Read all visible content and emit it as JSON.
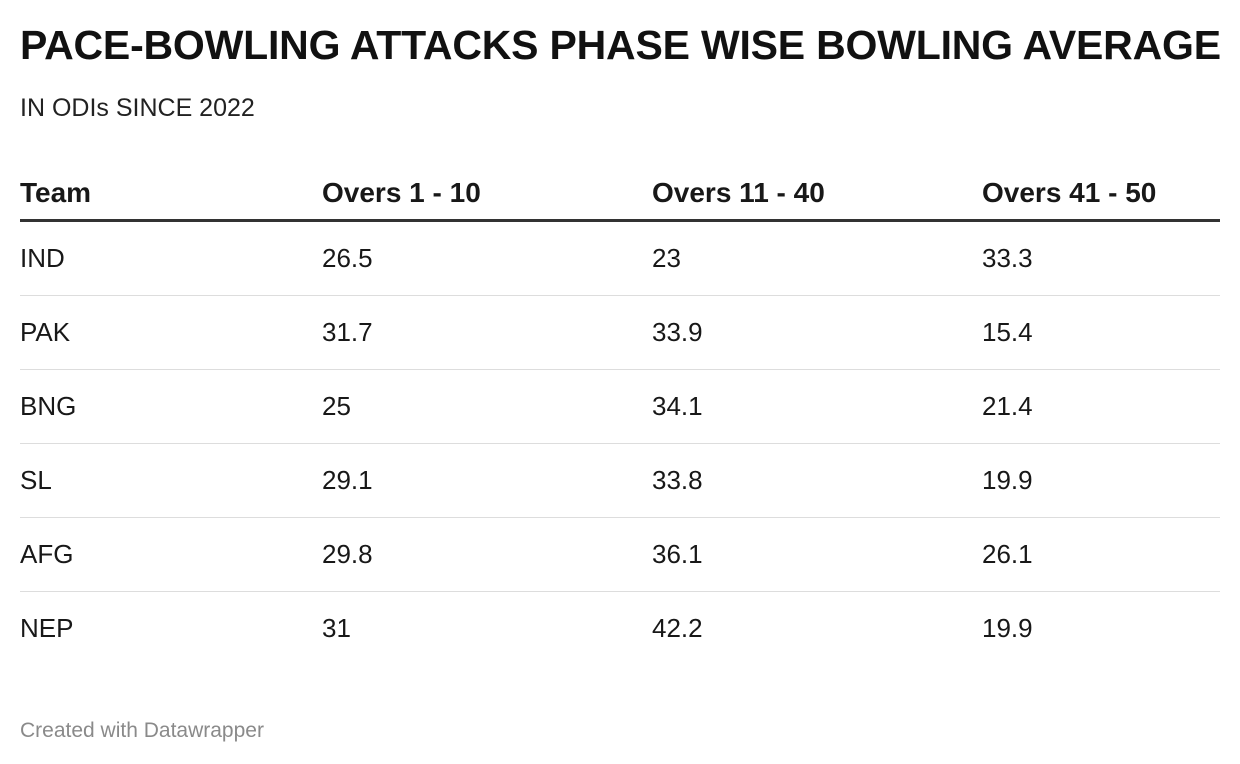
{
  "title": "PACE-BOWLING ATTACKS PHASE WISE BOWLING AVERAGE",
  "subtitle": "IN ODIs SINCE 2022",
  "footer": "Created with Datawrapper",
  "chart_data": {
    "type": "table",
    "title": "PACE-BOWLING ATTACKS PHASE WISE BOWLING AVERAGE",
    "subtitle": "IN ODIs SINCE 2022",
    "columns": [
      "Team",
      "Overs 1 - 10",
      "Overs 11 - 40",
      "Overs 41 - 50"
    ],
    "rows": [
      [
        "IND",
        "26.5",
        "23",
        "33.3"
      ],
      [
        "PAK",
        "31.7",
        "33.9",
        "15.4"
      ],
      [
        "BNG",
        "25",
        "34.1",
        "21.4"
      ],
      [
        "SL",
        "29.1",
        "33.8",
        "19.9"
      ],
      [
        "AFG",
        "29.8",
        "36.1",
        "26.1"
      ],
      [
        "NEP",
        "31",
        "42.2",
        "19.9"
      ]
    ]
  }
}
